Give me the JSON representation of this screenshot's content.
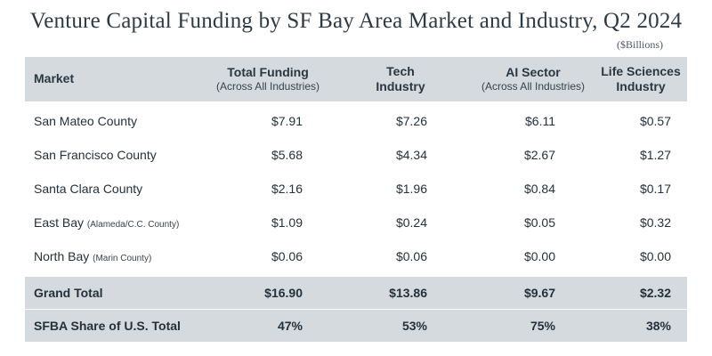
{
  "title": "Venture Capital Funding by SF Bay Area Market and Industry, Q2 2024",
  "units": "($Billions)",
  "header": {
    "market": "Market",
    "total_main": "Total Funding",
    "total_sub": "(Across All Industries)",
    "tech_line1": "Tech",
    "tech_line2": "Industry",
    "ai_main": "AI Sector",
    "ai_sub": "(Across All Industries)",
    "life_line1": "Life Sciences",
    "life_line2": "Industry"
  },
  "rows": [
    {
      "market": "San Mateo County",
      "note": "",
      "total": "$7.91",
      "tech": "$7.26",
      "ai": "$6.11",
      "life": "$0.57"
    },
    {
      "market": "San Francisco County",
      "note": "",
      "total": "$5.68",
      "tech": "$4.34",
      "ai": "$2.67",
      "life": "$1.27"
    },
    {
      "market": "Santa Clara County",
      "note": "",
      "total": "$2.16",
      "tech": "$1.96",
      "ai": "$0.84",
      "life": "$0.17"
    },
    {
      "market": "East Bay",
      "note": "(Alameda/C.C. County)",
      "total": "$1.09",
      "tech": "$0.24",
      "ai": "$0.05",
      "life": "$0.32"
    },
    {
      "market": "North Bay",
      "note": "(Marin County)",
      "total": "$0.06",
      "tech": "$0.06",
      "ai": "$0.00",
      "life": "$0.00"
    }
  ],
  "grand_total": {
    "label": "Grand Total",
    "total": "$16.90",
    "tech": "$13.86",
    "ai": "$9.67",
    "life": "$2.32"
  },
  "share": {
    "label": "SFBA Share of U.S. Total",
    "total": "47%",
    "tech": "53%",
    "ai": "75%",
    "life": "38%"
  },
  "colors": {
    "header_bg": "#d4dadd",
    "title": "#2e3b44",
    "text": "#25313a"
  }
}
